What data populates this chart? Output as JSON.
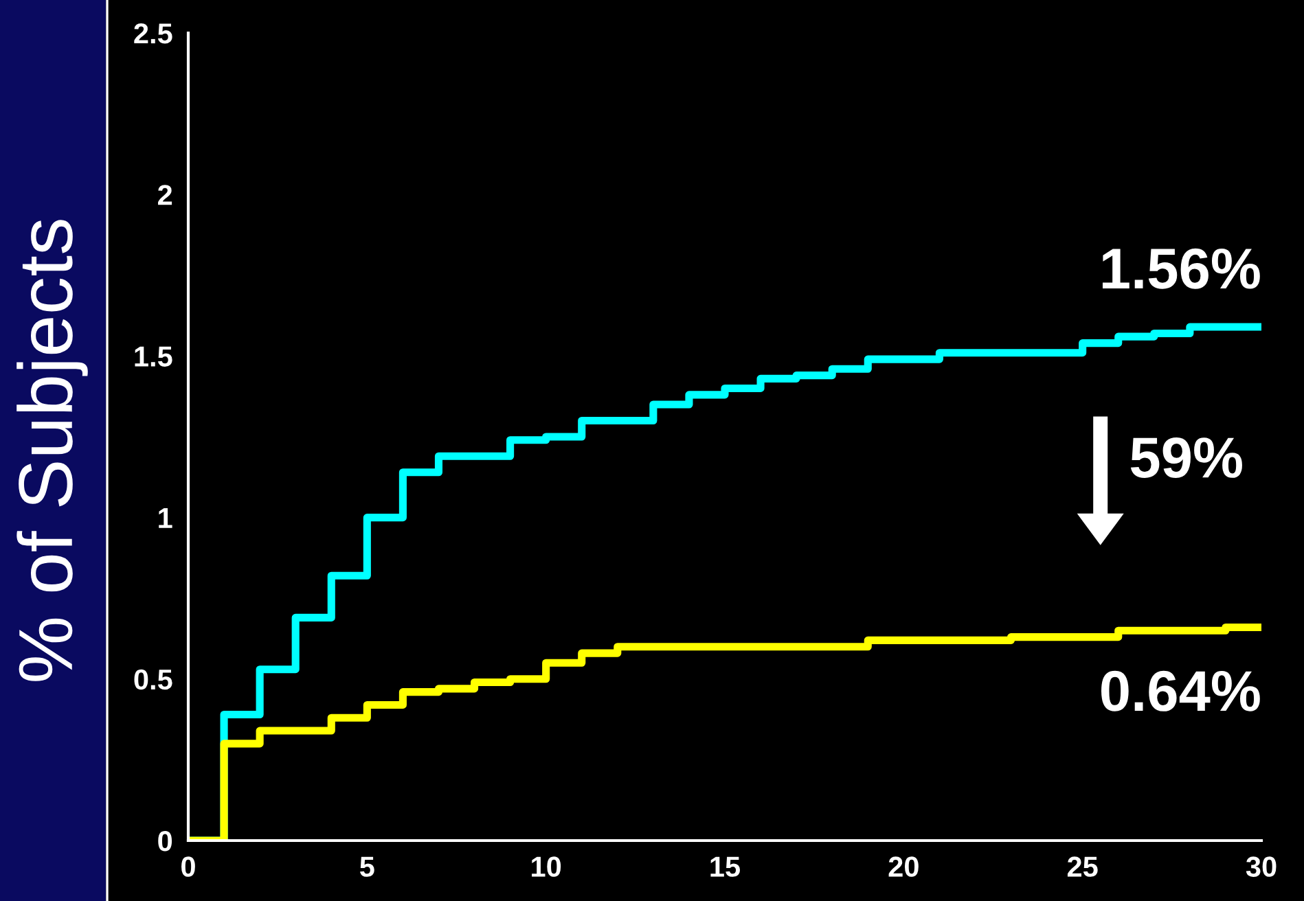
{
  "chart_data": {
    "type": "step",
    "ylabel": "% of Subjects",
    "series": [
      {
        "color": "#00ffff",
        "x": [
          0,
          1,
          2,
          3,
          4,
          5,
          6,
          7,
          9,
          10,
          11,
          13,
          14,
          15,
          16,
          17,
          18,
          19,
          21,
          25,
          26,
          27,
          28,
          30
        ],
        "values": [
          0,
          0.39,
          0.53,
          0.69,
          0.82,
          1.0,
          1.14,
          1.19,
          1.24,
          1.25,
          1.3,
          1.35,
          1.38,
          1.4,
          1.43,
          1.44,
          1.46,
          1.49,
          1.51,
          1.54,
          1.56,
          1.57,
          1.59,
          1.59
        ]
      },
      {
        "color": "#ffff00",
        "x": [
          0,
          1,
          2,
          4,
          5,
          6,
          7,
          8,
          9,
          10,
          11,
          12,
          19,
          23,
          26,
          29,
          30
        ],
        "values": [
          0,
          0.3,
          0.34,
          0.38,
          0.42,
          0.46,
          0.47,
          0.49,
          0.5,
          0.55,
          0.58,
          0.6,
          0.62,
          0.63,
          0.65,
          0.66,
          0.66
        ]
      }
    ],
    "xlim": [
      0,
      30
    ],
    "xticks": [
      0,
      5,
      10,
      15,
      20,
      25,
      30
    ],
    "ylim": [
      0,
      2.5
    ],
    "yticks": [
      0,
      0.5,
      1,
      1.5,
      2,
      2.5
    ],
    "grid": false,
    "legend": false,
    "annotations": [
      {
        "text": "1.56%",
        "x": 30,
        "y": 1.59
      },
      "59%",
      {
        "text": "0.64%",
        "x": 30,
        "y": 0.66
      }
    ]
  }
}
